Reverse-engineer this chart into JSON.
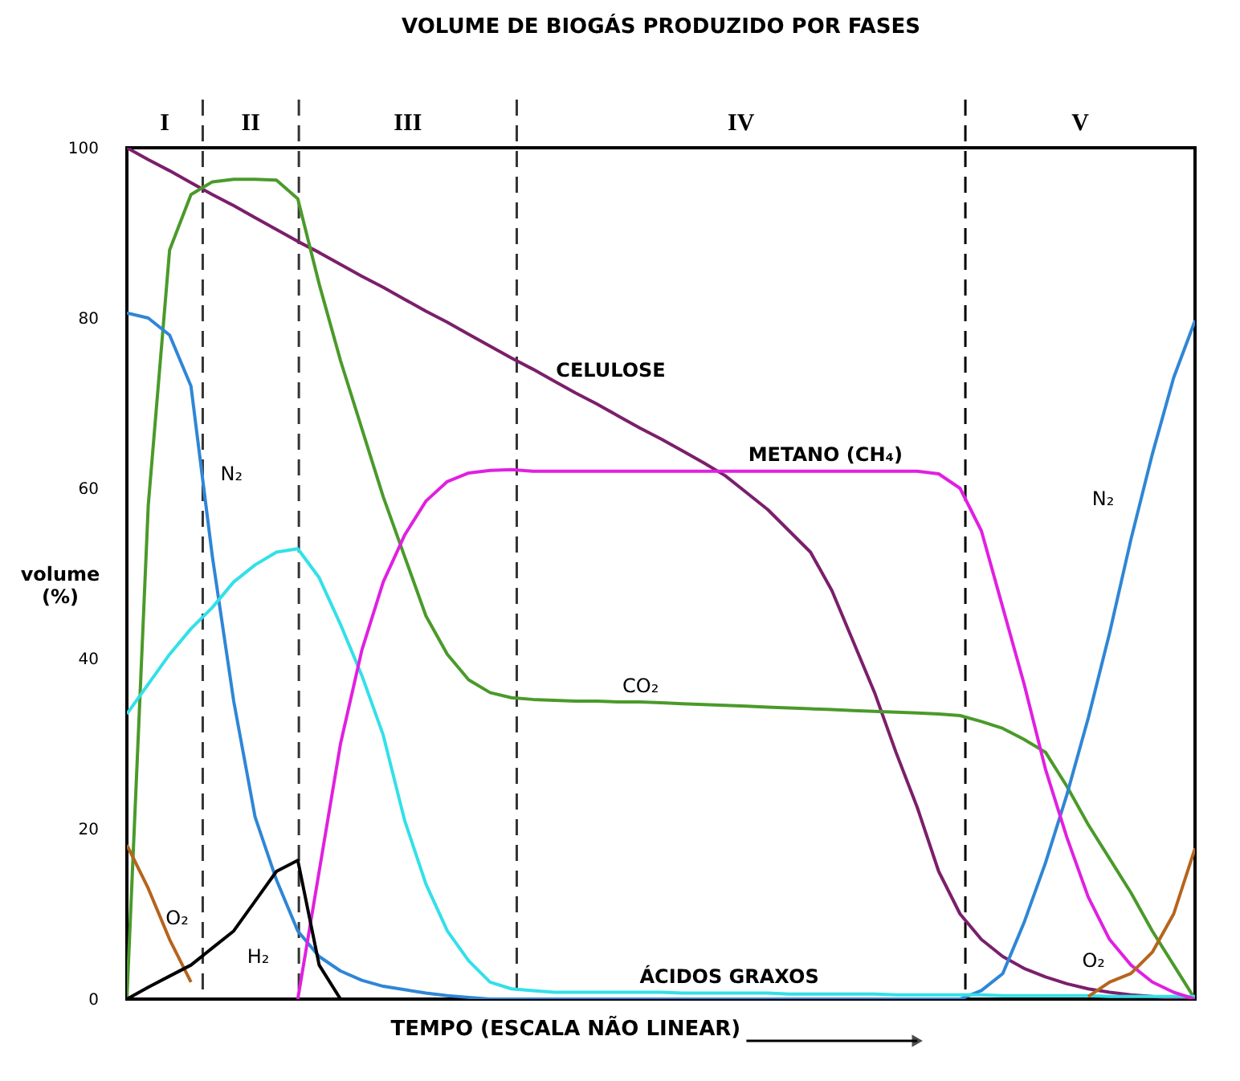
{
  "chart_data": {
    "type": "line",
    "title": "VOLUME DE BIOGÁS PRODUZIDO POR FASES",
    "xlabel": "TEMPO (ESCALA NÃO LINEAR)",
    "ylabel": "volume (%)",
    "categories": [
      null,
      null,
      null,
      null,
      null,
      null,
      null,
      null,
      null,
      null,
      null,
      null,
      null,
      null,
      null,
      null,
      null,
      null,
      null,
      null,
      null,
      null,
      null,
      null,
      null,
      null,
      null,
      null,
      null,
      null,
      null,
      null,
      null,
      null,
      null,
      null,
      null,
      null,
      null,
      null,
      null,
      null,
      null,
      null,
      null,
      null,
      null,
      null,
      null,
      null,
      null
    ],
    "ylim": [
      0,
      100
    ],
    "yticks": [
      0,
      20,
      40,
      60,
      80,
      100
    ],
    "tick_labels": "y",
    "grid": false,
    "series": [
      {
        "name": "CELULOSE",
        "color": "#7b1f6b",
        "values": [
          100,
          98.6,
          97.3,
          95.9,
          94.5,
          93.2,
          91.8,
          90.4,
          89,
          87.7,
          86.3,
          84.9,
          83.6,
          82.2,
          80.8,
          79.5,
          78.1,
          76.7,
          75.3,
          74,
          72.6,
          71.2,
          69.9,
          68.5,
          67.1,
          65.8,
          64.4,
          63,
          61.5,
          59.5,
          57.5,
          55,
          52.5,
          48,
          42,
          36,
          29,
          22.5,
          15,
          10,
          7,
          5,
          3.6,
          2.6,
          1.8,
          1.2,
          0.8,
          0.5,
          0.3,
          0.1,
          0
        ]
      },
      {
        "name": "CO₂",
        "color": "#4a9a2a",
        "values": [
          0,
          58,
          88,
          94.5,
          96,
          96.3,
          96.3,
          96.2,
          94,
          84,
          75,
          67,
          59,
          52,
          45,
          40.5,
          37.5,
          36,
          35.4,
          35.2,
          35.1,
          35,
          35,
          34.9,
          34.9,
          34.8,
          34.7,
          34.6,
          34.5,
          34.4,
          34.3,
          34.2,
          34.1,
          34,
          33.9,
          33.8,
          33.7,
          33.6,
          33.5,
          33.3,
          32.6,
          31.8,
          30.5,
          29,
          25,
          20.5,
          16.5,
          12.5,
          8,
          4,
          0
        ]
      },
      {
        "name": "N₂",
        "color": "#2f86d6",
        "values": [
          80.6,
          80,
          78,
          72,
          52,
          35,
          21.4,
          14,
          8,
          5,
          3.3,
          2.2,
          1.5,
          1.1,
          0.7,
          0.4,
          0.2,
          0,
          0,
          0,
          0,
          0,
          0,
          0,
          0,
          0,
          0,
          0,
          0,
          0,
          0,
          0,
          0,
          0,
          0,
          0,
          0,
          0,
          0,
          0,
          1,
          3,
          9,
          16,
          24,
          33,
          43,
          54,
          64,
          73,
          79.7
        ]
      },
      {
        "name": "ÁCIDOS GRAXOS",
        "color": "#33e0e8",
        "values": [
          33.5,
          37,
          40.5,
          43.5,
          46,
          49,
          51,
          52.5,
          52.9,
          49.5,
          44,
          38,
          31,
          21,
          13.5,
          8,
          4.5,
          2,
          1.2,
          1,
          0.8,
          0.8,
          0.8,
          0.8,
          0.8,
          0.8,
          0.7,
          0.7,
          0.7,
          0.7,
          0.7,
          0.6,
          0.6,
          0.6,
          0.6,
          0.6,
          0.5,
          0.5,
          0.5,
          0.5,
          0.5,
          0.4,
          0.4,
          0.4,
          0.4,
          0.4,
          0.3,
          0.3,
          0.3,
          0.3,
          0.3
        ]
      },
      {
        "name": "METANO  (CH₄)",
        "color": "#e020e0",
        "values": [
          null,
          null,
          null,
          null,
          null,
          null,
          null,
          null,
          0,
          15,
          30,
          41,
          49,
          54.5,
          58.5,
          60.8,
          61.8,
          62.1,
          62.2,
          62,
          62,
          62,
          62,
          62,
          62,
          62,
          62,
          62,
          62,
          62,
          62,
          62,
          62,
          62,
          62,
          62,
          62,
          62,
          61.7,
          60,
          55,
          46,
          37,
          27,
          19,
          12,
          7,
          4,
          2,
          0.8,
          0
        ]
      },
      {
        "name": "O₂",
        "color": "#b5651d",
        "values": [
          18.1,
          13,
          7,
          2,
          null,
          null,
          null,
          null,
          null,
          null,
          null,
          null,
          null,
          null,
          null,
          null,
          null,
          null,
          null,
          null,
          null,
          null,
          null,
          null,
          null,
          null,
          null,
          null,
          null,
          null,
          null,
          null,
          null,
          null,
          null,
          null,
          null,
          null,
          null,
          null,
          null,
          null,
          null,
          null,
          null,
          0.3,
          2,
          3,
          5.5,
          10,
          17.7
        ]
      },
      {
        "name": "H₂",
        "color": "#000000",
        "values": [
          0,
          1.4,
          2.7,
          4,
          6,
          8,
          11.5,
          15,
          16.3,
          4,
          0,
          null,
          null,
          null,
          null,
          null,
          null,
          null,
          null,
          null,
          null,
          null,
          null,
          null,
          null,
          null,
          null,
          null,
          null,
          null,
          null,
          null,
          null,
          null,
          null,
          null,
          null,
          null,
          null,
          null,
          null,
          null,
          null,
          null,
          null,
          null,
          null,
          null,
          null,
          null,
          null
        ]
      }
    ],
    "annotations": [
      "I",
      "II",
      "III",
      "IV",
      "V"
    ]
  }
}
